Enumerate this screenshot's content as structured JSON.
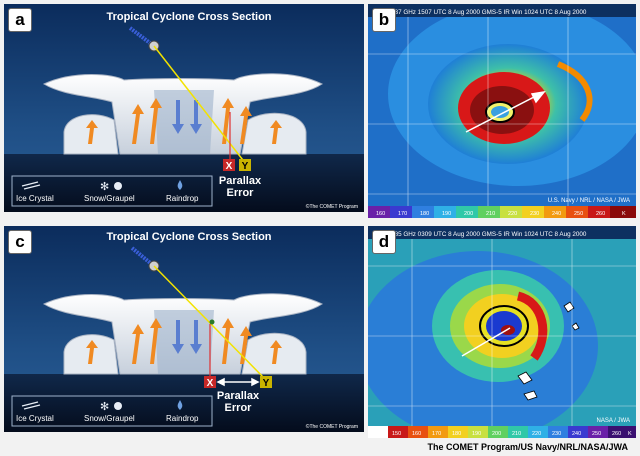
{
  "panels": [
    {
      "label": "a",
      "title": "Tropical Cyclone Cross Section",
      "markers": [
        "X",
        "Y"
      ],
      "parallax_text": [
        "Parallax",
        "Error"
      ],
      "legend": [
        "Ice Crystal",
        "Snow/Graupel",
        "Raindrop"
      ],
      "copyright": "©The COMET Program"
    },
    {
      "label": "b",
      "header": "TMI 37 GHz 1507 UTC  8 Aug 2000  GMS-5 IR Win 1024 UTC  8 Aug 2000",
      "footer": "U.S. Navy / NRL / NASA / JWA",
      "scale": [
        "160",
        "170",
        "180",
        "190",
        "200",
        "210",
        "220",
        "230",
        "240",
        "250",
        "260",
        "K"
      ]
    },
    {
      "label": "c",
      "title": "Tropical Cyclone Cross Section",
      "markers": [
        "X",
        "Y"
      ],
      "parallax_text": [
        "Parallax",
        "Error"
      ],
      "legend": [
        "Ice Crystal",
        "Snow/Graupel",
        "Raindrop"
      ],
      "copyright": "©The COMET Program"
    },
    {
      "label": "d",
      "header": "TMI 85 GHz 0309 UTC  8 Aug 2000  GMS-5 IR Win 1024 UTC  8 Aug 2000",
      "footer": "NASA / JWA",
      "scale": [
        "150",
        "160",
        "170",
        "180",
        "190",
        "200",
        "210",
        "220",
        "230",
        "240",
        "250",
        "260",
        "K"
      ]
    }
  ],
  "credit": "The COMET Program/US Navy/NRL/NASA/JWA"
}
